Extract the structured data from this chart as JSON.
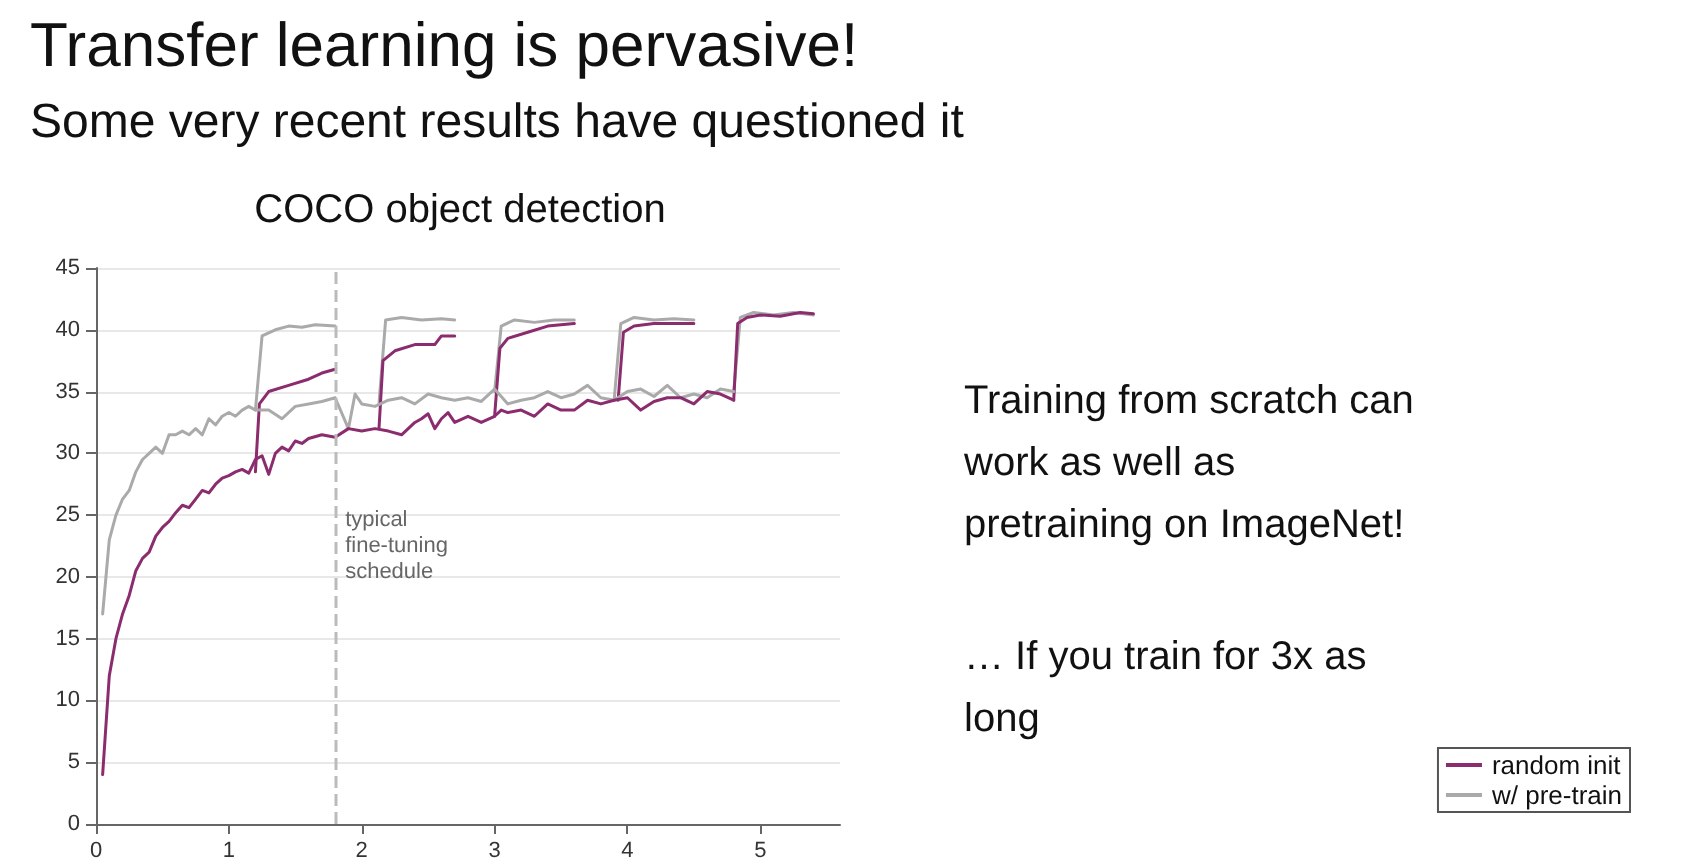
{
  "chart_data": {
    "type": "line",
    "title": "Transfer learning is pervasive!",
    "subtitle": "Some very recent results have questioned it",
    "annotations": [
      "COCO object detection",
      "Training from scratch can work as well as pretraining on ImageNet!",
      "… If you train for 3x as long"
    ],
    "xlim": [
      0,
      5.6
    ],
    "xticks": [
      0,
      1,
      2,
      3,
      4,
      5
    ],
    "ylim": [
      0,
      45
    ],
    "yticks": [
      0,
      5,
      10,
      15,
      20,
      25,
      30,
      35,
      40,
      45
    ],
    "grid": "y",
    "legend": "bottom right",
    "marker": "none",
    "line_style": "solid",
    "ref_lines": [
      {
        "axis": "x",
        "value": 1.8,
        "label": "typical fine-tuning schedule",
        "color": "#bbbbbb",
        "line_style": "dashed"
      }
    ],
    "series": [
      {
        "name": "w/ pre-train",
        "color": "#aaaaaa",
        "x": [
          0.05,
          0.1,
          0.15,
          0.2,
          0.25,
          0.3,
          0.35,
          0.4,
          0.45,
          0.5,
          0.55,
          0.6,
          0.65,
          0.7,
          0.75,
          0.8,
          0.85,
          0.9,
          0.95,
          1.0,
          1.05,
          1.1,
          1.15,
          1.2,
          1.3,
          1.4,
          1.5,
          1.6,
          1.7,
          1.8,
          1.9,
          1.95,
          2.0,
          2.1,
          2.2,
          2.3,
          2.4,
          2.5,
          2.6,
          2.7,
          2.8,
          2.9,
          3.0,
          3.1,
          3.2,
          3.3,
          3.4,
          3.5,
          3.6,
          3.7,
          3.8,
          3.9,
          4.0,
          4.1,
          4.2,
          4.3,
          4.4,
          4.5,
          4.6,
          4.7,
          4.8
        ],
        "values": [
          17,
          23,
          25,
          26.3,
          27,
          28.5,
          29.5,
          30,
          30.5,
          30,
          31.5,
          31.5,
          31.8,
          31.5,
          32,
          31.5,
          32.8,
          32.3,
          33,
          33.3,
          33,
          33.5,
          33.8,
          33.5,
          33.5,
          32.8,
          33.8,
          34,
          34.2,
          34.5,
          32,
          34.8,
          34,
          33.8,
          34.3,
          34.5,
          34,
          34.8,
          34.5,
          34.3,
          34.5,
          34.2,
          35.2,
          34,
          34.3,
          34.5,
          35,
          34.5,
          34.8,
          35.5,
          34.5,
          34.3,
          35,
          35.2,
          34.6,
          35.5,
          34.5,
          34.8,
          34.5,
          35.2,
          35
        ]
      },
      {
        "name": "random init",
        "color": "#8b2c6e",
        "x": [
          0.05,
          0.1,
          0.15,
          0.2,
          0.25,
          0.3,
          0.35,
          0.4,
          0.45,
          0.5,
          0.55,
          0.6,
          0.65,
          0.7,
          0.75,
          0.8,
          0.85,
          0.9,
          0.95,
          1.0,
          1.05,
          1.1,
          1.15,
          1.2,
          1.25,
          1.3,
          1.35,
          1.4,
          1.45,
          1.5,
          1.55,
          1.6,
          1.7,
          1.8,
          1.9,
          2.0,
          2.1,
          2.2,
          2.3,
          2.4,
          2.45,
          2.5,
          2.55,
          2.6,
          2.65,
          2.7,
          2.8,
          2.9,
          3.0,
          3.05,
          3.1,
          3.2,
          3.3,
          3.4,
          3.5,
          3.6,
          3.7,
          3.8,
          3.9,
          4.0,
          4.1,
          4.2,
          4.3,
          4.4,
          4.5,
          4.6,
          4.7,
          4.8
        ],
        "values": [
          4,
          12,
          15,
          17,
          18.5,
          20.5,
          21.5,
          22,
          23.3,
          24,
          24.5,
          25.2,
          25.8,
          25.6,
          26.3,
          27,
          26.8,
          27.5,
          28,
          28.2,
          28.5,
          28.7,
          28.4,
          29.5,
          29.8,
          28.3,
          30,
          30.5,
          30.2,
          31,
          30.8,
          31.2,
          31.5,
          31.3,
          32,
          31.8,
          32,
          31.8,
          31.5,
          32.5,
          32.8,
          33.2,
          32,
          32.8,
          33.3,
          32.5,
          33,
          32.5,
          33,
          33.5,
          33.3,
          33.5,
          33,
          34,
          33.5,
          33.5,
          34.3,
          34,
          34.3,
          34.5,
          33.5,
          34.2,
          34.5,
          34.5,
          34,
          35,
          34.8,
          34.3
        ]
      },
      {
        "color": "#aaaaaa",
        "x": [
          1.2,
          1.25,
          1.35,
          1.45,
          1.55,
          1.65,
          1.8
        ],
        "values": [
          33.5,
          39.5,
          40,
          40.3,
          40.2,
          40.4,
          40.3
        ]
      },
      {
        "color": "#aaaaaa",
        "x": [
          2.13,
          2.18,
          2.3,
          2.45,
          2.6,
          2.7
        ],
        "values": [
          34,
          40.8,
          41,
          40.8,
          40.9,
          40.8
        ]
      },
      {
        "color": "#aaaaaa",
        "x": [
          3.0,
          3.05,
          3.15,
          3.3,
          3.45,
          3.6
        ],
        "values": [
          35,
          40.3,
          40.8,
          40.6,
          40.8,
          40.8
        ]
      },
      {
        "color": "#aaaaaa",
        "x": [
          3.9,
          3.95,
          4.05,
          4.2,
          4.35,
          4.5
        ],
        "values": [
          34.3,
          40.5,
          41,
          40.8,
          40.9,
          40.8
        ]
      },
      {
        "color": "#aaaaaa",
        "x": [
          4.8,
          4.85,
          4.95,
          5.1,
          5.25,
          5.4
        ],
        "values": [
          35,
          41,
          41.4,
          41.2,
          41.4,
          41.2
        ]
      },
      {
        "color": "#8b2c6e",
        "x": [
          1.2,
          1.23,
          1.3,
          1.45,
          1.6,
          1.7,
          1.8
        ],
        "values": [
          28.5,
          34,
          35,
          35.5,
          36,
          36.5,
          36.8
        ]
      },
      {
        "color": "#8b2c6e",
        "x": [
          2.13,
          2.16,
          2.25,
          2.4,
          2.55,
          2.6,
          2.7
        ],
        "values": [
          32,
          37.5,
          38.3,
          38.8,
          38.8,
          39.5,
          39.5
        ]
      },
      {
        "color": "#8b2c6e",
        "x": [
          3.0,
          3.04,
          3.1,
          3.25,
          3.4,
          3.6
        ],
        "values": [
          33,
          38.5,
          39.3,
          39.8,
          40.3,
          40.5
        ]
      },
      {
        "color": "#8b2c6e",
        "x": [
          3.93,
          3.97,
          4.05,
          4.2,
          4.35,
          4.5
        ],
        "values": [
          34.3,
          39.8,
          40.3,
          40.5,
          40.5,
          40.5
        ]
      },
      {
        "color": "#8b2c6e",
        "x": [
          4.8,
          4.83,
          4.9,
          5.0,
          5.15,
          5.3,
          5.4
        ],
        "values": [
          34.3,
          40.5,
          41,
          41.2,
          41.1,
          41.4,
          41.3
        ]
      }
    ]
  }
}
